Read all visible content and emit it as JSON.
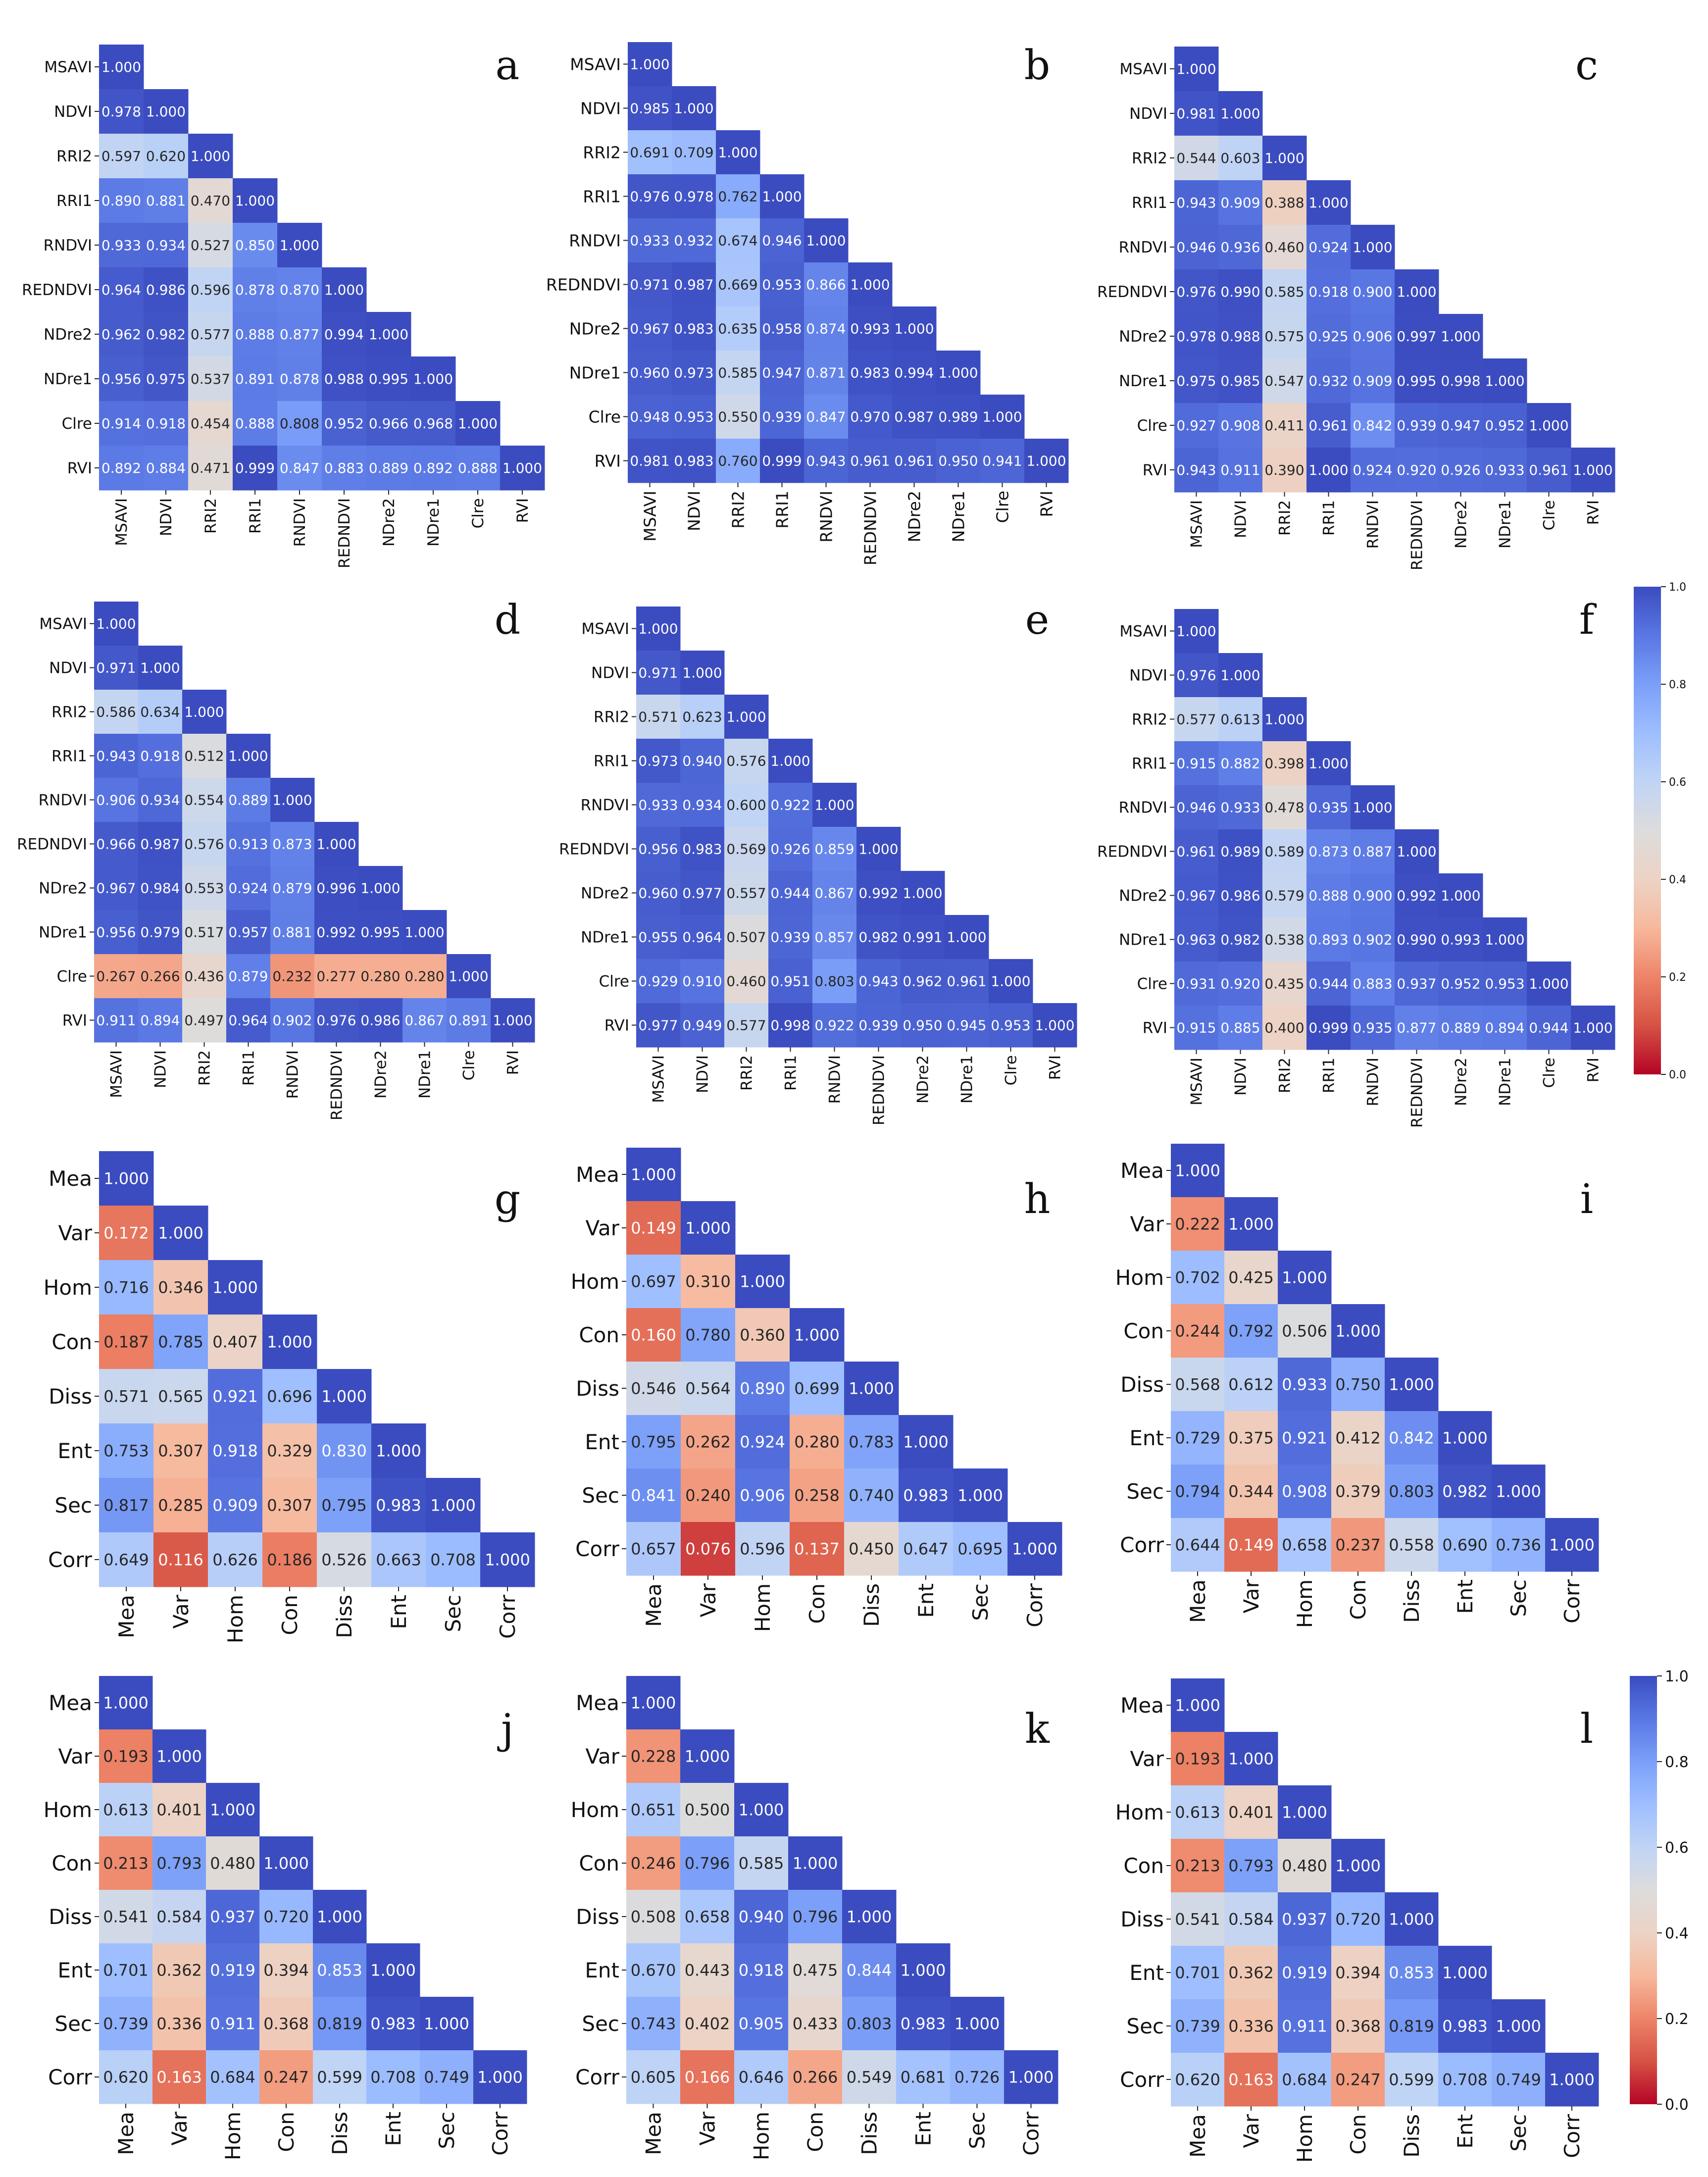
{
  "figure": {
    "colorbar_ticks": [
      "1.0",
      "0.8",
      "0.6",
      "0.4",
      "0.2",
      "0.0"
    ],
    "colormap": {
      "low": "#b40426",
      "mid": "#dddcdc",
      "high": "#3b4cc0",
      "stops": [
        "#b40426",
        "#d65244",
        "#ee8468",
        "#f7b89c",
        "#ecd3c5",
        "#dddcdc",
        "#c0d4f5",
        "#9ebeff",
        "#7b9ff9",
        "#5977e3",
        "#3b4cc0"
      ]
    }
  },
  "chart_data": [
    {
      "panel": "a",
      "type": "heatmap",
      "value_range": [
        0,
        1
      ],
      "variables": [
        "MSAVI",
        "NDVI",
        "RRI2",
        "RRI1",
        "RNDVI",
        "REDNDVI",
        "NDre2",
        "NDre1",
        "Clre",
        "RVI"
      ],
      "matrix": [
        [
          "1.000"
        ],
        [
          "0.978",
          "1.000"
        ],
        [
          "0.597",
          "0.620",
          "1.000"
        ],
        [
          "0.890",
          "0.881",
          "0.470",
          "1.000"
        ],
        [
          "0.933",
          "0.934",
          "0.527",
          "0.850",
          "1.000"
        ],
        [
          "0.964",
          "0.986",
          "0.596",
          "0.878",
          "0.870",
          "1.000"
        ],
        [
          "0.962",
          "0.982",
          "0.577",
          "0.888",
          "0.877",
          "0.994",
          "1.000"
        ],
        [
          "0.956",
          "0.975",
          "0.537",
          "0.891",
          "0.878",
          "0.988",
          "0.995",
          "1.000"
        ],
        [
          "0.914",
          "0.918",
          "0.454",
          "0.888",
          "0.808",
          "0.952",
          "0.966",
          "0.968",
          "1.000"
        ],
        [
          "0.892",
          "0.884",
          "0.471",
          "0.999",
          "0.847",
          "0.883",
          "0.889",
          "0.892",
          "0.888",
          "1.000"
        ]
      ]
    },
    {
      "panel": "b",
      "type": "heatmap",
      "value_range": [
        0,
        1
      ],
      "variables": [
        "MSAVI",
        "NDVI",
        "RRI2",
        "RRI1",
        "RNDVI",
        "REDNDVI",
        "NDre2",
        "NDre1",
        "Clre",
        "RVI"
      ],
      "matrix": [
        [
          "1.000"
        ],
        [
          "0.985",
          "1.000"
        ],
        [
          "0.691",
          "0.709",
          "1.000"
        ],
        [
          "0.976",
          "0.978",
          "0.762",
          "1.000"
        ],
        [
          "0.933",
          "0.932",
          "0.674",
          "0.946",
          "1.000"
        ],
        [
          "0.971",
          "0.987",
          "0.669",
          "0.953",
          "0.866",
          "1.000"
        ],
        [
          "0.967",
          "0.983",
          "0.635",
          "0.958",
          "0.874",
          "0.993",
          "1.000"
        ],
        [
          "0.960",
          "0.973",
          "0.585",
          "0.947",
          "0.871",
          "0.983",
          "0.994",
          "1.000"
        ],
        [
          "0.948",
          "0.953",
          "0.550",
          "0.939",
          "0.847",
          "0.970",
          "0.987",
          "0.989",
          "1.000"
        ],
        [
          "0.981",
          "0.983",
          "0.760",
          "0.999",
          "0.943",
          "0.961",
          "0.961",
          "0.950",
          "0.941",
          "1.000"
        ]
      ]
    },
    {
      "panel": "c",
      "type": "heatmap",
      "value_range": [
        0,
        1
      ],
      "variables": [
        "MSAVI",
        "NDVI",
        "RRI2",
        "RRI1",
        "RNDVI",
        "REDNDVI",
        "NDre2",
        "NDre1",
        "Clre",
        "RVI"
      ],
      "matrix": [
        [
          "1.000"
        ],
        [
          "0.981",
          "1.000"
        ],
        [
          "0.544",
          "0.603",
          "1.000"
        ],
        [
          "0.943",
          "0.909",
          "0.388",
          "1.000"
        ],
        [
          "0.946",
          "0.936",
          "0.460",
          "0.924",
          "1.000"
        ],
        [
          "0.976",
          "0.990",
          "0.585",
          "0.918",
          "0.900",
          "1.000"
        ],
        [
          "0.978",
          "0.988",
          "0.575",
          "0.925",
          "0.906",
          "0.997",
          "1.000"
        ],
        [
          "0.975",
          "0.985",
          "0.547",
          "0.932",
          "0.909",
          "0.995",
          "0.998",
          "1.000"
        ],
        [
          "0.927",
          "0.908",
          "0.411",
          "0.961",
          "0.842",
          "0.939",
          "0.947",
          "0.952",
          "1.000"
        ],
        [
          "0.943",
          "0.911",
          "0.390",
          "1.000",
          "0.924",
          "0.920",
          "0.926",
          "0.933",
          "0.961",
          "1.000"
        ]
      ]
    },
    {
      "panel": "d",
      "type": "heatmap",
      "value_range": [
        0,
        1
      ],
      "variables": [
        "MSAVI",
        "NDVI",
        "RRI2",
        "RRI1",
        "RNDVI",
        "REDNDVI",
        "NDre2",
        "NDre1",
        "Clre",
        "RVI"
      ],
      "matrix": [
        [
          "1.000"
        ],
        [
          "0.971",
          "1.000"
        ],
        [
          "0.586",
          "0.634",
          "1.000"
        ],
        [
          "0.943",
          "0.918",
          "0.512",
          "1.000"
        ],
        [
          "0.906",
          "0.934",
          "0.554",
          "0.889",
          "1.000"
        ],
        [
          "0.966",
          "0.987",
          "0.576",
          "0.913",
          "0.873",
          "1.000"
        ],
        [
          "0.967",
          "0.984",
          "0.553",
          "0.924",
          "0.879",
          "0.996",
          "1.000"
        ],
        [
          "0.956",
          "0.979",
          "0.517",
          "0.957",
          "0.881",
          "0.992",
          "0.995",
          "1.000"
        ],
        [
          "0.267",
          "0.266",
          "0.436",
          "0.879",
          "0.232",
          "0.277",
          "0.280",
          "0.280",
          "1.000"
        ],
        [
          "0.911",
          "0.894",
          "0.497",
          "0.964",
          "0.902",
          "0.976",
          "0.986",
          "0.867",
          "0.891",
          "1.000"
        ]
      ]
    },
    {
      "panel": "e",
      "type": "heatmap",
      "value_range": [
        0,
        1
      ],
      "variables": [
        "MSAVI",
        "NDVI",
        "RRI2",
        "RRI1",
        "RNDVI",
        "REDNDVI",
        "NDre2",
        "NDre1",
        "Clre",
        "RVI"
      ],
      "matrix": [
        [
          "1.000"
        ],
        [
          "0.971",
          "1.000"
        ],
        [
          "0.571",
          "0.623",
          "1.000"
        ],
        [
          "0.973",
          "0.940",
          "0.576",
          "1.000"
        ],
        [
          "0.933",
          "0.934",
          "0.600",
          "0.922",
          "1.000"
        ],
        [
          "0.956",
          "0.983",
          "0.569",
          "0.926",
          "0.859",
          "1.000"
        ],
        [
          "0.960",
          "0.977",
          "0.557",
          "0.944",
          "0.867",
          "0.992",
          "1.000"
        ],
        [
          "0.955",
          "0.964",
          "0.507",
          "0.939",
          "0.857",
          "0.982",
          "0.991",
          "1.000"
        ],
        [
          "0.929",
          "0.910",
          "0.460",
          "0.951",
          "0.803",
          "0.943",
          "0.962",
          "0.961",
          "1.000"
        ],
        [
          "0.977",
          "0.949",
          "0.577",
          "0.998",
          "0.922",
          "0.939",
          "0.950",
          "0.945",
          "0.953",
          "1.000"
        ]
      ]
    },
    {
      "panel": "f",
      "type": "heatmap",
      "value_range": [
        0,
        1
      ],
      "variables": [
        "MSAVI",
        "NDVI",
        "RRI2",
        "RRI1",
        "RNDVI",
        "REDNDVI",
        "NDre2",
        "NDre1",
        "Clre",
        "RVI"
      ],
      "matrix": [
        [
          "1.000"
        ],
        [
          "0.976",
          "1.000"
        ],
        [
          "0.577",
          "0.613",
          "1.000"
        ],
        [
          "0.915",
          "0.882",
          "0.398",
          "1.000"
        ],
        [
          "0.946",
          "0.933",
          "0.478",
          "0.935",
          "1.000"
        ],
        [
          "0.961",
          "0.989",
          "0.589",
          "0.873",
          "0.887",
          "1.000"
        ],
        [
          "0.967",
          "0.986",
          "0.579",
          "0.888",
          "0.900",
          "0.992",
          "1.000"
        ],
        [
          "0.963",
          "0.982",
          "0.538",
          "0.893",
          "0.902",
          "0.990",
          "0.993",
          "1.000"
        ],
        [
          "0.931",
          "0.920",
          "0.435",
          "0.944",
          "0.883",
          "0.937",
          "0.952",
          "0.953",
          "1.000"
        ],
        [
          "0.915",
          "0.885",
          "0.400",
          "0.999",
          "0.935",
          "0.877",
          "0.889",
          "0.894",
          "0.944",
          "1.000"
        ]
      ]
    },
    {
      "panel": "g",
      "type": "heatmap",
      "value_range": [
        0,
        1
      ],
      "variables": [
        "Mea",
        "Var",
        "Hom",
        "Con",
        "Diss",
        "Ent",
        "Sec",
        "Corr"
      ],
      "matrix": [
        [
          "1.000"
        ],
        [
          "0.172",
          "1.000"
        ],
        [
          "0.716",
          "0.346",
          "1.000"
        ],
        [
          "0.187",
          "0.785",
          "0.407",
          "1.000"
        ],
        [
          "0.571",
          "0.565",
          "0.921",
          "0.696",
          "1.000"
        ],
        [
          "0.753",
          "0.307",
          "0.918",
          "0.329",
          "0.830",
          "1.000"
        ],
        [
          "0.817",
          "0.285",
          "0.909",
          "0.307",
          "0.795",
          "0.983",
          "1.000"
        ],
        [
          "0.649",
          "0.116",
          "0.626",
          "0.186",
          "0.526",
          "0.663",
          "0.708",
          "1.000"
        ]
      ]
    },
    {
      "panel": "h",
      "type": "heatmap",
      "value_range": [
        0,
        1
      ],
      "variables": [
        "Mea",
        "Var",
        "Hom",
        "Con",
        "Diss",
        "Ent",
        "Sec",
        "Corr"
      ],
      "matrix": [
        [
          "1.000"
        ],
        [
          "0.149",
          "1.000"
        ],
        [
          "0.697",
          "0.310",
          "1.000"
        ],
        [
          "0.160",
          "0.780",
          "0.360",
          "1.000"
        ],
        [
          "0.546",
          "0.564",
          "0.890",
          "0.699",
          "1.000"
        ],
        [
          "0.795",
          "0.262",
          "0.924",
          "0.280",
          "0.783",
          "1.000"
        ],
        [
          "0.841",
          "0.240",
          "0.906",
          "0.258",
          "0.740",
          "0.983",
          "1.000"
        ],
        [
          "0.657",
          "0.076",
          "0.596",
          "0.137",
          "0.450",
          "0.647",
          "0.695",
          "1.000"
        ]
      ]
    },
    {
      "panel": "i",
      "type": "heatmap",
      "value_range": [
        0,
        1
      ],
      "variables": [
        "Mea",
        "Var",
        "Hom",
        "Con",
        "Diss",
        "Ent",
        "Sec",
        "Corr"
      ],
      "matrix": [
        [
          "1.000"
        ],
        [
          "0.222",
          "1.000"
        ],
        [
          "0.702",
          "0.425",
          "1.000"
        ],
        [
          "0.244",
          "0.792",
          "0.506",
          "1.000"
        ],
        [
          "0.568",
          "0.612",
          "0.933",
          "0.750",
          "1.000"
        ],
        [
          "0.729",
          "0.375",
          "0.921",
          "0.412",
          "0.842",
          "1.000"
        ],
        [
          "0.794",
          "0.344",
          "0.908",
          "0.379",
          "0.803",
          "0.982",
          "1.000"
        ],
        [
          "0.644",
          "0.149",
          "0.658",
          "0.237",
          "0.558",
          "0.690",
          "0.736",
          "1.000"
        ]
      ]
    },
    {
      "panel": "j",
      "type": "heatmap",
      "value_range": [
        0,
        1
      ],
      "variables": [
        "Mea",
        "Var",
        "Hom",
        "Con",
        "Diss",
        "Ent",
        "Sec",
        "Corr"
      ],
      "matrix": [
        [
          "1.000"
        ],
        [
          "0.193",
          "1.000"
        ],
        [
          "0.613",
          "0.401",
          "1.000"
        ],
        [
          "0.213",
          "0.793",
          "0.480",
          "1.000"
        ],
        [
          "0.541",
          "0.584",
          "0.937",
          "0.720",
          "1.000"
        ],
        [
          "0.701",
          "0.362",
          "0.919",
          "0.394",
          "0.853",
          "1.000"
        ],
        [
          "0.739",
          "0.336",
          "0.911",
          "0.368",
          "0.819",
          "0.983",
          "1.000"
        ],
        [
          "0.620",
          "0.163",
          "0.684",
          "0.247",
          "0.599",
          "0.708",
          "0.749",
          "1.000"
        ]
      ]
    },
    {
      "panel": "k",
      "type": "heatmap",
      "value_range": [
        0,
        1
      ],
      "variables": [
        "Mea",
        "Var",
        "Hom",
        "Con",
        "Diss",
        "Ent",
        "Sec",
        "Corr"
      ],
      "matrix": [
        [
          "1.000"
        ],
        [
          "0.228",
          "1.000"
        ],
        [
          "0.651",
          "0.500",
          "1.000"
        ],
        [
          "0.246",
          "0.796",
          "0.585",
          "1.000"
        ],
        [
          "0.508",
          "0.658",
          "0.940",
          "0.796",
          "1.000"
        ],
        [
          "0.670",
          "0.443",
          "0.918",
          "0.475",
          "0.844",
          "1.000"
        ],
        [
          "0.743",
          "0.402",
          "0.905",
          "0.433",
          "0.803",
          "0.983",
          "1.000"
        ],
        [
          "0.605",
          "0.166",
          "0.646",
          "0.266",
          "0.549",
          "0.681",
          "0.726",
          "1.000"
        ]
      ]
    },
    {
      "panel": "l",
      "type": "heatmap",
      "value_range": [
        0,
        1
      ],
      "variables": [
        "Mea",
        "Var",
        "Hom",
        "Con",
        "Diss",
        "Ent",
        "Sec",
        "Corr"
      ],
      "matrix": [
        [
          "1.000"
        ],
        [
          "0.193",
          "1.000"
        ],
        [
          "0.613",
          "0.401",
          "1.000"
        ],
        [
          "0.213",
          "0.793",
          "0.480",
          "1.000"
        ],
        [
          "0.541",
          "0.584",
          "0.937",
          "0.720",
          "1.000"
        ],
        [
          "0.701",
          "0.362",
          "0.919",
          "0.394",
          "0.853",
          "1.000"
        ],
        [
          "0.739",
          "0.336",
          "0.911",
          "0.368",
          "0.819",
          "0.983",
          "1.000"
        ],
        [
          "0.620",
          "0.163",
          "0.684",
          "0.247",
          "0.599",
          "0.708",
          "0.749",
          "1.000"
        ]
      ]
    }
  ]
}
